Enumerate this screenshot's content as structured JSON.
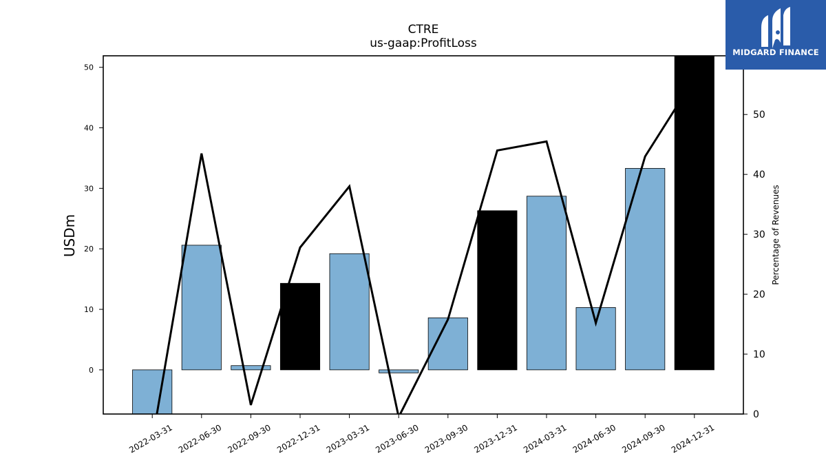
{
  "chart_data": {
    "type": "bar",
    "title": "CTRE",
    "subtitle": "us-gaap:ProfitLoss",
    "ylabel": "USDm",
    "y2label": "Percentage of Revenues",
    "categories": [
      "2022-03-31",
      "2022-06-30",
      "2022-09-30",
      "2022-12-31",
      "2023-03-31",
      "2023-06-30",
      "2023-09-30",
      "2023-12-31",
      "2024-03-31",
      "2024-06-30",
      "2024-09-30",
      "2024-12-31"
    ],
    "series": [
      {
        "type": "bar",
        "values": [
          -8.8,
          20.6,
          0.7,
          14.3,
          19.2,
          -0.5,
          8.6,
          26.3,
          28.7,
          10.3,
          33.3,
          52.0
        ]
      },
      {
        "type": "line",
        "axis": "right",
        "values": [
          -4.5,
          43.5,
          1.5,
          27.8,
          38.0,
          -0.5,
          15.8,
          44.0,
          45.5,
          15.2,
          43.0,
          56.0
        ]
      }
    ],
    "highlighted_categories": [
      "2022-12-31",
      "2023-12-31",
      "2024-12-31"
    ],
    "ylim": [
      -7.3,
      51.9
    ],
    "y2lim": [
      0,
      59.8
    ],
    "yticks": [
      0,
      10,
      20,
      30,
      40,
      50
    ],
    "y2ticks": [
      0,
      10,
      20,
      30,
      40,
      50
    ],
    "grid": false,
    "colors": {
      "bar": "#7eb0d5",
      "highlight_bar": "#000000",
      "line": "#000000"
    }
  },
  "logo": {
    "text": "MIDGARD FINANCE",
    "background": "#2a5caa"
  }
}
